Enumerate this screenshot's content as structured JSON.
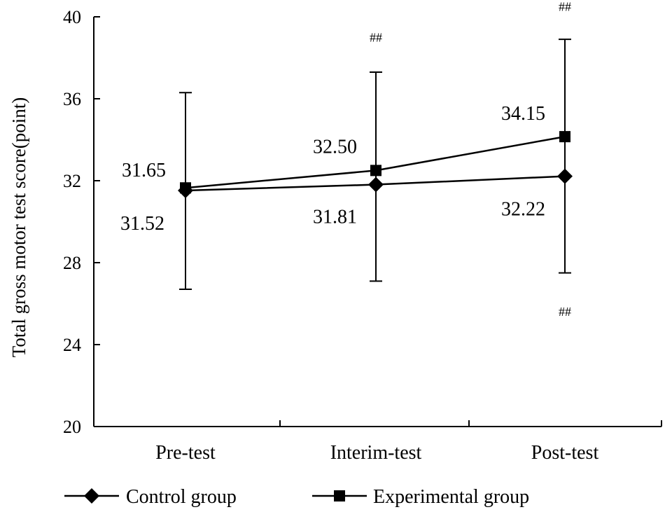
{
  "chart_data": {
    "type": "line",
    "title": "",
    "xlabel": "",
    "ylabel": "Total gross motor test score(point)",
    "ylim": [
      20,
      40
    ],
    "yticks": [
      20,
      24,
      28,
      32,
      36,
      40
    ],
    "categories": [
      "Pre-test",
      "Interim-test",
      "Post-test"
    ],
    "series": [
      {
        "name": "Control group",
        "marker": "diamond",
        "values": [
          31.52,
          31.81,
          32.22
        ],
        "labels": [
          "31.52",
          "31.81",
          "32.22"
        ]
      },
      {
        "name": "Experimental group",
        "marker": "square",
        "values": [
          31.65,
          32.5,
          34.15
        ],
        "labels": [
          "31.65",
          "32.50",
          "34.15"
        ]
      }
    ],
    "error_bars": [
      {
        "category": "Pre-test",
        "low": 26.7,
        "high": 36.3
      },
      {
        "category": "Interim-test",
        "low": 27.1,
        "high": 37.3
      },
      {
        "category": "Post-test",
        "low": 27.5,
        "high": 38.9
      }
    ],
    "annotations": [
      {
        "text": "##",
        "category": "Interim-test",
        "value": 39.0
      },
      {
        "text": "##",
        "category": "Post-test",
        "value": 40.5
      },
      {
        "text": "##",
        "category": "Post-test",
        "value": 25.6
      }
    ],
    "legend_position": "bottom",
    "colors": {
      "line": "#000000",
      "axis": "#000000"
    }
  }
}
